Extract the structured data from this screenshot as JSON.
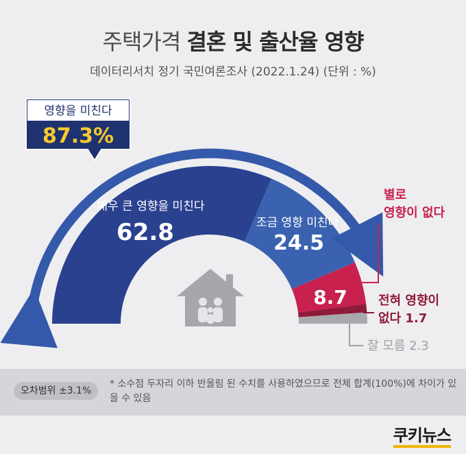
{
  "title": {
    "part1": "주택가격",
    "part2": "결혼 및 출산율 영향"
  },
  "subtitle": "데이터리서치 정기 국민여론조사 (2022.1.24)  (단위 : %)",
  "callout": {
    "label": "영향을 미친다",
    "value": "87.3%"
  },
  "chart_data": {
    "type": "pie",
    "variant": "half-donut",
    "unit": "%",
    "segments": [
      {
        "label": "매우 큰 영향을 미친다",
        "value": 62.8,
        "value_label": "62.8",
        "color": "#2a418f"
      },
      {
        "label": "조금 영향 미친다",
        "value": 24.5,
        "value_label": "24.5",
        "color": "#3a62b0"
      },
      {
        "label_lines": [
          "별로",
          "영향이 없다"
        ],
        "value": 8.7,
        "value_label": "8.7",
        "color": "#c8214e"
      },
      {
        "label_lines": [
          "전혀 영향이",
          "없다 1.7"
        ],
        "value": 1.7,
        "color": "#8f1a39"
      },
      {
        "label": "잘 모름 2.3",
        "value": 2.3,
        "color": "#a9a9ad"
      }
    ]
  },
  "footer": {
    "margin_of_error": "오차범위 ±3.1%",
    "note": "* 소수점 두자리 이하 반올림 된 수치를 사용하였으므로 전체 합계(100%)에 차이가 있을 수 있음",
    "brand": "쿠키뉴스"
  },
  "colors": {
    "very_big": "#2a418f",
    "somewhat": "#3a62b0",
    "not_much": "#c8214e",
    "not_at_all": "#8f1a39",
    "dont_know": "#a9a9ad",
    "callout_bg": "#1f3270",
    "callout_text": "#f7c92e",
    "arrow": "#3559aa"
  }
}
